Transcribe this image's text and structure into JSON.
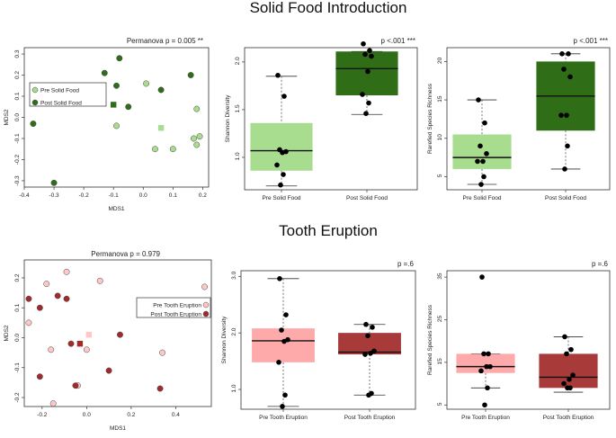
{
  "figure": {
    "title_top": "Solid Food Introduction",
    "title_bottom": "Tooth Eruption"
  },
  "chart_data": [
    {
      "type": "scatter",
      "id": "sf_mds",
      "title": "Permanova p = 0.005 **",
      "xlabel": "MDS1",
      "ylabel": "MDS2",
      "xlim": [
        -0.4,
        0.22
      ],
      "ylim": [
        -0.33,
        0.33
      ],
      "xticks": [
        -0.4,
        -0.3,
        -0.2,
        -0.1,
        0.0,
        0.1,
        0.2
      ],
      "xticklabels": [
        "-0.4",
        "-0.3",
        "-0.2",
        "-0.1",
        "0.0",
        "0.1",
        "0.2"
      ],
      "yticks": [
        -0.3,
        -0.2,
        -0.1,
        0.0,
        0.1,
        0.2,
        0.3
      ],
      "yticklabels": [
        "-0.3",
        "-0.2",
        "-0.1",
        "0.0",
        "0.1",
        "0.2",
        "0.3"
      ],
      "legend": [
        "Pre Solid Food",
        "Post Solid Food"
      ],
      "colors": [
        "#a8dd8f",
        "#2f6e17"
      ],
      "series": [
        {
          "name": "Pre Solid Food",
          "x": [
            0.01,
            -0.09,
            0.04,
            0.1,
            0.17,
            0.18,
            0.18,
            0.19
          ],
          "y": [
            0.16,
            -0.04,
            -0.15,
            -0.15,
            -0.1,
            -0.13,
            0.04,
            -0.09
          ],
          "centroid": [
            0.06,
            -0.05
          ]
        },
        {
          "name": "Post Solid Food",
          "x": [
            -0.13,
            -0.08,
            -0.09,
            -0.05,
            0.06,
            0.16,
            -0.37,
            -0.3
          ],
          "y": [
            0.21,
            0.28,
            0.15,
            0.05,
            0.13,
            0.2,
            -0.03,
            -0.31
          ],
          "centroid": [
            -0.1,
            0.06
          ]
        }
      ]
    },
    {
      "type": "box",
      "id": "sf_shannon",
      "annotation": "p <.001 ***",
      "ylabel": "Shannon Diversity",
      "ylim": [
        0.66,
        2.15
      ],
      "yticks": [
        1.0,
        1.5,
        2.0
      ],
      "yticklabels": [
        "1.0",
        "1.5",
        "2.0"
      ],
      "categories": [
        "Pre Solid Food",
        "Post Solid Food"
      ],
      "colors": [
        "#a8dd8f",
        "#2f6e17"
      ],
      "boxes": [
        {
          "q1": 0.86,
          "median": 1.07,
          "q3": 1.36,
          "whisker_low": 0.7,
          "whisker_high": 1.85
        },
        {
          "q1": 1.65,
          "median": 1.93,
          "q3": 2.11,
          "whisker_low": 1.45,
          "whisker_high": 2.11
        }
      ],
      "points": [
        [
          1.86,
          1.64,
          1.08,
          1.06,
          1.05,
          0.92,
          0.82,
          0.71
        ],
        [
          2.19,
          2.12,
          2.08,
          2.06,
          1.9,
          1.66,
          1.57,
          1.46
        ]
      ]
    },
    {
      "type": "box",
      "id": "sf_richness",
      "annotation": "p <.001 ***",
      "ylabel": "Rarefied Species Richness",
      "ylim": [
        3.3,
        21.8
      ],
      "yticks": [
        5,
        10,
        15,
        20
      ],
      "yticklabels": [
        "5",
        "10",
        "15",
        "20"
      ],
      "categories": [
        "Pre Solid Food",
        "Post Solid Food"
      ],
      "colors": [
        "#a8dd8f",
        "#2f6e17"
      ],
      "boxes": [
        {
          "q1": 6.0,
          "median": 7.5,
          "q3": 10.5,
          "whisker_low": 4.0,
          "whisker_high": 15.0
        },
        {
          "q1": 11.0,
          "median": 15.5,
          "q3": 20.0,
          "whisker_low": 6.0,
          "whisker_high": 21.0
        }
      ],
      "points": [
        [
          15,
          12,
          9,
          8,
          7,
          7,
          5,
          4
        ],
        [
          21,
          21,
          19,
          18,
          13,
          13,
          9,
          6
        ]
      ]
    },
    {
      "type": "scatter",
      "id": "te_mds",
      "title": "Permanova p = 0.979",
      "xlabel": "MDS1",
      "ylabel": "MDS2",
      "xlim": [
        -0.28,
        0.56
      ],
      "ylim": [
        -0.23,
        0.26
      ],
      "xticks": [
        -0.2,
        0.0,
        0.2,
        0.4
      ],
      "xticklabels": [
        "-0.2",
        "0.0",
        "0.2",
        "0.4"
      ],
      "yticks": [
        -0.2,
        -0.1,
        0.0,
        0.1,
        0.2
      ],
      "yticklabels": [
        "-0.2",
        "-0.1",
        "0.0",
        "0.1",
        "0.2"
      ],
      "legend": [
        "Pre Tooth Eruption",
        "Post Tooth Eruption"
      ],
      "colors": [
        "#ffc8c8",
        "#a32a2a"
      ],
      "series": [
        {
          "name": "Pre Tooth Eruption",
          "x": [
            -0.09,
            -0.18,
            0.06,
            -0.26,
            -0.16,
            0.0,
            0.53,
            0.34,
            -0.04,
            -0.15
          ],
          "y": [
            0.22,
            0.18,
            0.19,
            0.05,
            -0.04,
            -0.04,
            0.17,
            -0.05,
            -0.16,
            -0.22
          ],
          "centroid": [
            0.01,
            0.01
          ]
        },
        {
          "name": "Post Tooth Eruption",
          "x": [
            -0.26,
            -0.21,
            -0.13,
            -0.09,
            -0.07,
            0.15,
            -0.21,
            0.1,
            -0.05,
            0.33
          ],
          "y": [
            0.13,
            0.1,
            0.14,
            0.13,
            -0.02,
            0.01,
            -0.13,
            -0.11,
            -0.16,
            -0.17
          ],
          "centroid": [
            -0.03,
            -0.02
          ]
        }
      ]
    },
    {
      "type": "box",
      "id": "te_shannon",
      "annotation": "p =.6",
      "ylabel": "Shannon Diversity",
      "ylim": [
        0.65,
        3.1
      ],
      "yticks": [
        1.0,
        2.0,
        3.0
      ],
      "yticklabels": [
        "1.0",
        "2.0",
        "3.0"
      ],
      "categories": [
        "Pre Tooth Eruption",
        "Post Tooth Eruption"
      ],
      "colors": [
        "#ffaaaa",
        "#a83a3a"
      ],
      "boxes": [
        {
          "q1": 1.48,
          "median": 1.86,
          "q3": 2.08,
          "whisker_low": 0.7,
          "whisker_high": 2.96
        },
        {
          "q1": 1.62,
          "median": 1.66,
          "q3": 2.0,
          "whisker_low": 0.9,
          "whisker_high": 2.15
        }
      ],
      "points": [
        [
          2.96,
          2.32,
          2.05,
          1.88,
          1.85,
          1.48,
          0.9,
          0.7
        ],
        [
          2.15,
          2.1,
          1.95,
          1.68,
          1.64,
          1.62,
          0.93,
          0.9
        ]
      ]
    },
    {
      "type": "box",
      "id": "te_richness",
      "annotation": "p =.6",
      "ylabel": "Rarefied Species Richness",
      "ylim": [
        4.0,
        36.5
      ],
      "yticks": [
        5,
        15,
        25,
        35
      ],
      "yticklabels": [
        "5",
        "15",
        "25",
        "35"
      ],
      "categories": [
        "Pre Tooth Eruption",
        "Post Tooth Eruption"
      ],
      "colors": [
        "#ffaaaa",
        "#a83a3a"
      ],
      "boxes": [
        {
          "q1": 12.5,
          "median": 14.0,
          "q3": 17.0,
          "whisker_low": 9.0,
          "whisker_high": 17.0
        },
        {
          "q1": 9.0,
          "median": 11.5,
          "q3": 17.0,
          "whisker_low": 8.0,
          "whisker_high": 21.0
        }
      ],
      "points": [
        [
          35,
          17,
          17,
          14,
          14,
          13,
          9,
          5
        ],
        [
          21,
          18,
          17,
          12,
          11,
          10,
          9,
          9
        ]
      ]
    }
  ]
}
